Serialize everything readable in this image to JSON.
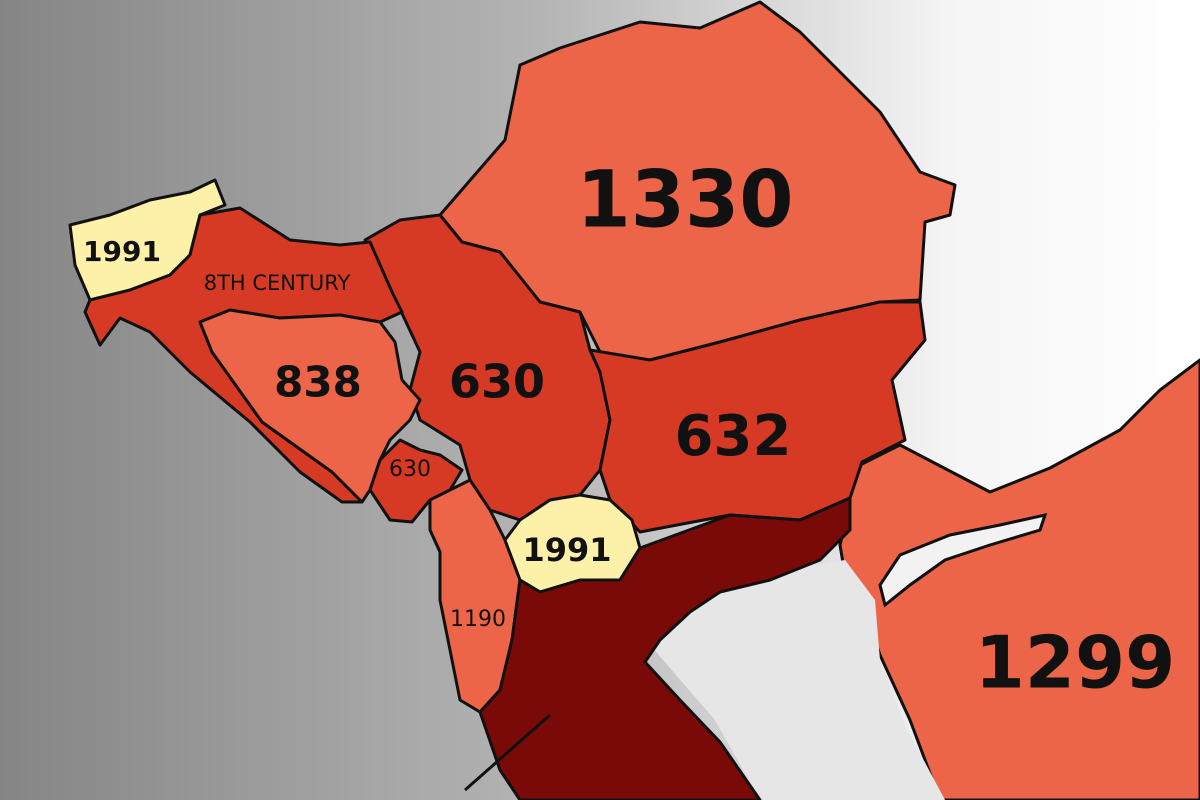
{
  "colors": {
    "light": "#ec6549",
    "medium": "#d63a25",
    "dark": "#7a0a08",
    "yellow": "#fdf1aa",
    "sea": "#e6e6e6",
    "outline": "#111111"
  },
  "regions": [
    {
      "id": "romania",
      "label": "1330",
      "shade": "light"
    },
    {
      "id": "serbia",
      "label": "630",
      "shade": "medium"
    },
    {
      "id": "bulgaria",
      "label": "632",
      "shade": "medium"
    },
    {
      "id": "slovenia",
      "label": "1991",
      "shade": "yellow"
    },
    {
      "id": "croatia",
      "label": "8TH CENTURY",
      "shade": "medium"
    },
    {
      "id": "bosnia",
      "label": "838",
      "shade": "light"
    },
    {
      "id": "montenegro",
      "label": "630",
      "shade": "medium"
    },
    {
      "id": "albania",
      "label": "1190",
      "shade": "light"
    },
    {
      "id": "north-macedonia",
      "label": "1991",
      "shade": "yellow"
    },
    {
      "id": "greece",
      "label": "",
      "shade": "dark"
    },
    {
      "id": "turkey",
      "label": "1299",
      "shade": "light"
    }
  ]
}
